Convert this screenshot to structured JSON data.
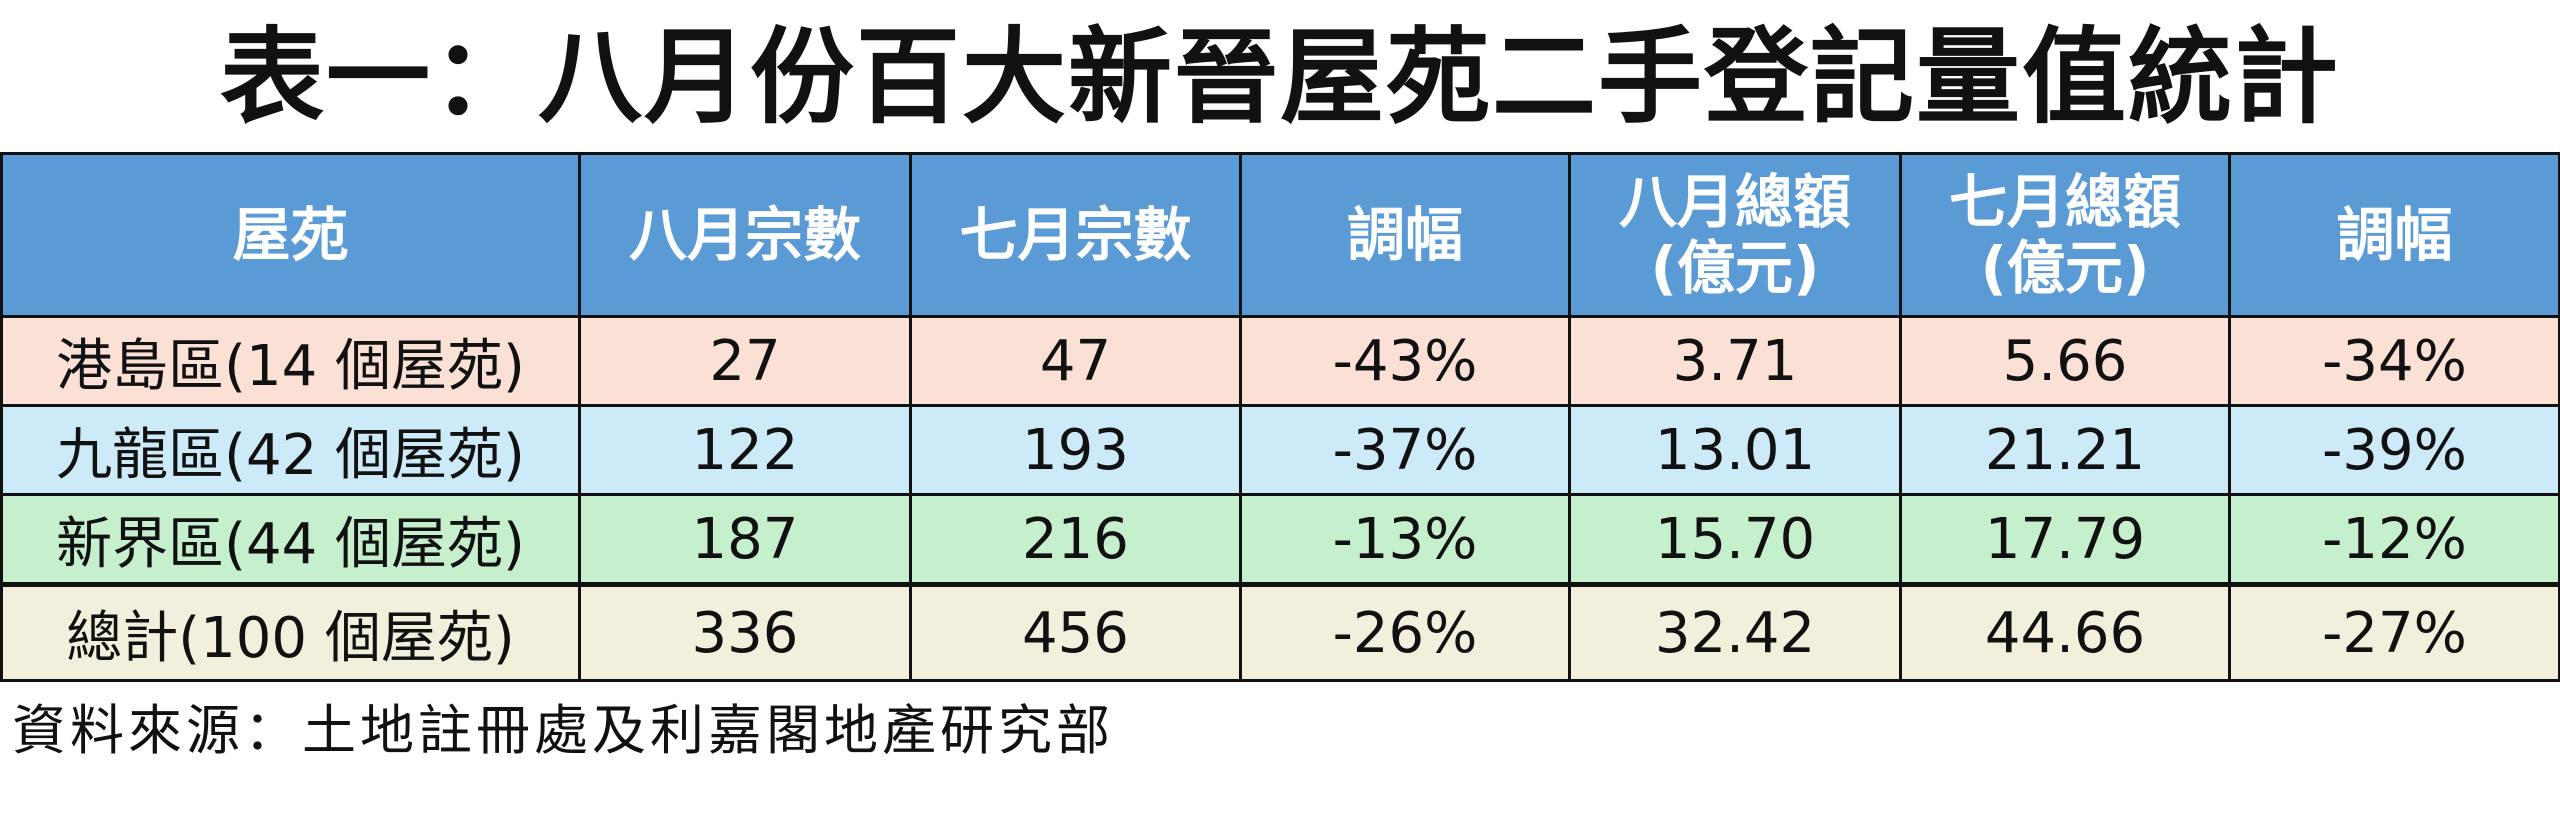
{
  "header": {
    "title": "表一：八月份百大新晉屋苑二手登記量值統計"
  },
  "table": {
    "columns": [
      "屋苑",
      "八月宗數",
      "七月宗數",
      "調幅",
      "八月總額\n(億元)",
      "七月總額\n(億元)",
      "調幅"
    ],
    "rows": [
      [
        "港島區(14 個屋苑)",
        "27",
        "47",
        "-43%",
        "3.71",
        "5.66",
        "-34%"
      ],
      [
        "九龍區(42 個屋苑)",
        "122",
        "193",
        "-37%",
        "13.01",
        "21.21",
        "-39%"
      ],
      [
        "新界區(44 個屋苑)",
        "187",
        "216",
        "-13%",
        "15.70",
        "17.79",
        "-12%"
      ],
      [
        "總計(100 個屋苑)",
        "336",
        "456",
        "-26%",
        "32.42",
        "44.66",
        "-27%"
      ]
    ]
  },
  "footer": {
    "source": "資料來源：土地註冊處及利嘉閣地產研究部"
  }
}
